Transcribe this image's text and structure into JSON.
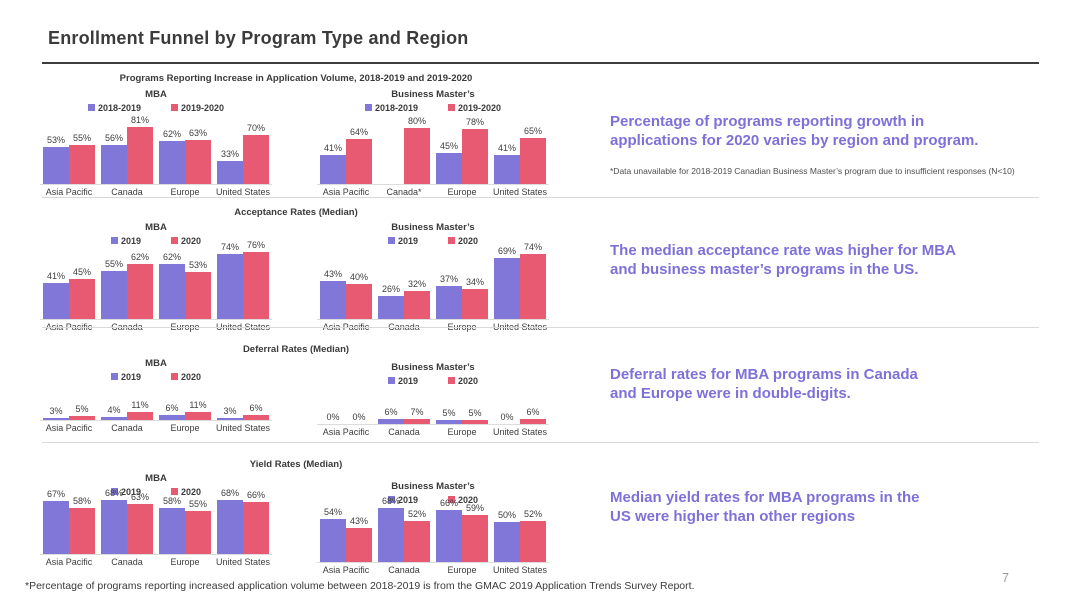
{
  "page": {
    "title": "Enrollment Funnel by Program Type and Region",
    "bottom_footnote": "*Percentage of programs reporting increased application volume between 2018-2019 is from the GMAC 2019 Application Trends Survey Report.",
    "page_number": "7"
  },
  "colors": {
    "series1": "#8177d9",
    "series2": "#e85a72",
    "annotation_text": "#7d71d9",
    "header_rule": "#3d3d3d",
    "divider": "#d9d9d9"
  },
  "chart_data": [
    {
      "section_title": "Programs Reporting Increase in Application Volume, 2018-2019 and 2019-2020",
      "annotation": "Percentage of programs reporting growth in\napplications for 2020 varies by region and program.",
      "footnote": "*Data unavailable for 2018-2019 Canadian Business Master’s program due to insufficient responses (N<10)",
      "charts": [
        {
          "type": "bar",
          "title": "MBA",
          "categories": [
            "Asia Pacific",
            "Canada",
            "Europe",
            "United States"
          ],
          "series": [
            {
              "name": "2018-2019",
              "values": [
                53,
                56,
                62,
                33
              ]
            },
            {
              "name": "2019-2020",
              "values": [
                55,
                81,
                63,
                70
              ]
            }
          ],
          "ylim": [
            0,
            100
          ],
          "value_suffix": "%"
        },
        {
          "type": "bar",
          "title": "Business Master’s",
          "categories": [
            "Asia Pacific",
            "Canada*",
            "Europe",
            "United States"
          ],
          "series": [
            {
              "name": "2018-2019",
              "values": [
                41,
                null,
                45,
                41
              ]
            },
            {
              "name": "2019-2020",
              "values": [
                64,
                80,
                78,
                65
              ]
            }
          ],
          "ylim": [
            0,
            100
          ],
          "value_suffix": "%"
        }
      ]
    },
    {
      "section_title": "Acceptance Rates (Median)",
      "annotation": "The median acceptance rate was higher for MBA\nand business master’s programs in the US.",
      "charts": [
        {
          "type": "bar",
          "title": "MBA",
          "categories": [
            "Asia Pacific",
            "Canada",
            "Europe",
            "United States"
          ],
          "series": [
            {
              "name": "2019",
              "values": [
                41,
                55,
                62,
                74
              ]
            },
            {
              "name": "2020",
              "values": [
                45,
                62,
                53,
                76
              ]
            }
          ],
          "ylim": [
            0,
            100
          ],
          "value_suffix": "%"
        },
        {
          "type": "bar",
          "title": "Business Master’s",
          "categories": [
            "Asia Pacific",
            "Canada",
            "Europe",
            "United States"
          ],
          "series": [
            {
              "name": "2019",
              "values": [
                43,
                26,
                37,
                69
              ]
            },
            {
              "name": "2020",
              "values": [
                40,
                32,
                34,
                74
              ]
            }
          ],
          "ylim": [
            0,
            100
          ],
          "value_suffix": "%"
        }
      ]
    },
    {
      "section_title": "Deferral Rates (Median)",
      "annotation": "Deferral rates for MBA programs in Canada\nand Europe were in double-digits.",
      "charts": [
        {
          "type": "bar",
          "title": "MBA",
          "categories": [
            "Asia Pacific",
            "Canada",
            "Europe",
            "United States"
          ],
          "series": [
            {
              "name": "2019",
              "values": [
                3,
                4,
                6,
                3
              ]
            },
            {
              "name": "2020",
              "values": [
                5,
                11,
                11,
                6
              ]
            }
          ],
          "ylim": [
            0,
            100
          ],
          "value_suffix": "%"
        },
        {
          "type": "bar",
          "title": "Business Master’s",
          "categories": [
            "Asia Pacific",
            "Canada",
            "Europe",
            "United States"
          ],
          "series": [
            {
              "name": "2019",
              "values": [
                0,
                6,
                5,
                0
              ]
            },
            {
              "name": "2020",
              "values": [
                0,
                7,
                5,
                6
              ]
            }
          ],
          "ylim": [
            0,
            100
          ],
          "value_suffix": "%"
        }
      ]
    },
    {
      "section_title": "Yield Rates (Median)",
      "annotation": "Median yield rates for MBA programs in the\nUS were higher than other regions",
      "charts": [
        {
          "type": "bar",
          "title": "MBA",
          "categories": [
            "Asia Pacific",
            "Canada",
            "Europe",
            "United States"
          ],
          "series": [
            {
              "name": "2019",
              "values": [
                67,
                68,
                58,
                68
              ]
            },
            {
              "name": "2020",
              "values": [
                58,
                63,
                55,
                66
              ]
            }
          ],
          "ylim": [
            0,
            100
          ],
          "value_suffix": "%"
        },
        {
          "type": "bar",
          "title": "Business Master’s",
          "categories": [
            "Asia Pacific",
            "Canada",
            "Europe",
            "United States"
          ],
          "series": [
            {
              "name": "2019",
              "values": [
                54,
                68,
                66,
                50
              ]
            },
            {
              "name": "2020",
              "values": [
                43,
                52,
                59,
                52
              ]
            }
          ],
          "ylim": [
            0,
            100
          ],
          "value_suffix": "%"
        }
      ]
    }
  ]
}
